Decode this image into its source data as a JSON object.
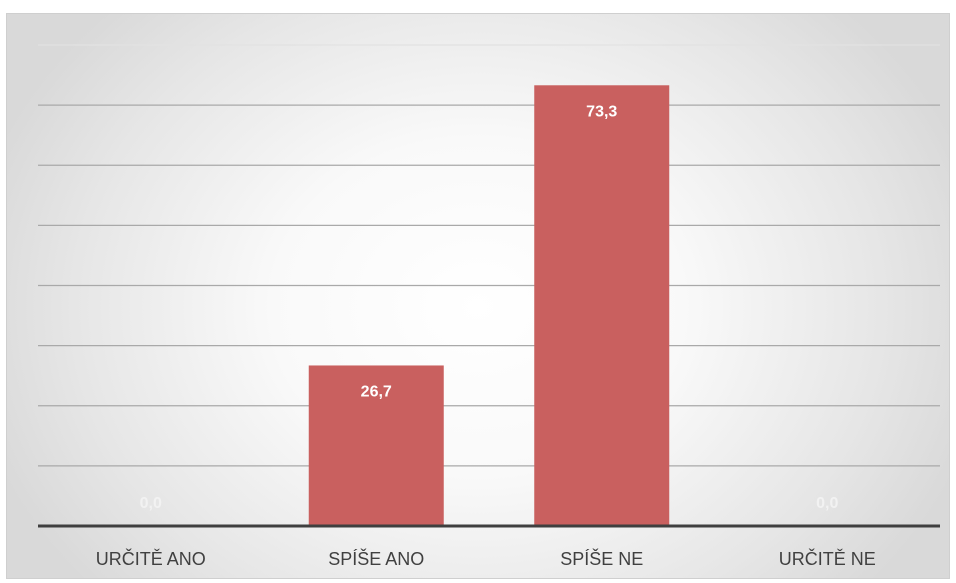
{
  "chart_data": {
    "type": "bar",
    "title": "",
    "xlabel": "",
    "ylabel": "",
    "categories": [
      "URČITĚ ANO",
      "SPÍŠE ANO",
      "SPÍŠE NE",
      "URČITĚ NE"
    ],
    "values": [
      0.0,
      26.7,
      73.3,
      0.0
    ],
    "data_labels": [
      "0,0",
      "26,7",
      "73,3",
      "0,0"
    ],
    "ylim": [
      0,
      80
    ],
    "grid": true,
    "legend": "none",
    "colors": {
      "bar": "#c9605f",
      "axis": "#3f3f3f",
      "grid": "#a9a9a9",
      "label": "#404040"
    }
  }
}
